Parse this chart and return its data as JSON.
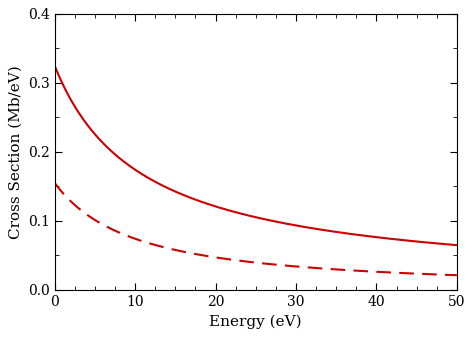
{
  "title": "",
  "xlabel": "Energy (eV)",
  "ylabel": "Cross Section (Mb/eV)",
  "xlim": [
    0,
    50
  ],
  "ylim": [
    0,
    0.4
  ],
  "xticks": [
    0,
    10,
    20,
    30,
    40,
    50
  ],
  "yticks": [
    0.0,
    0.1,
    0.2,
    0.3,
    0.4
  ],
  "line_color": "#cc0000",
  "line_width": 1.5,
  "solid_A": 0.325,
  "solid_B": 0.1,
  "solid_n": 0.9,
  "dashed_A": 0.155,
  "dashed_B": 0.085,
  "dashed_n": 1.2,
  "background_color": "#ffffff",
  "plot_bg_color": "#ffffff",
  "tick_label_size": 10,
  "axis_label_size": 11
}
